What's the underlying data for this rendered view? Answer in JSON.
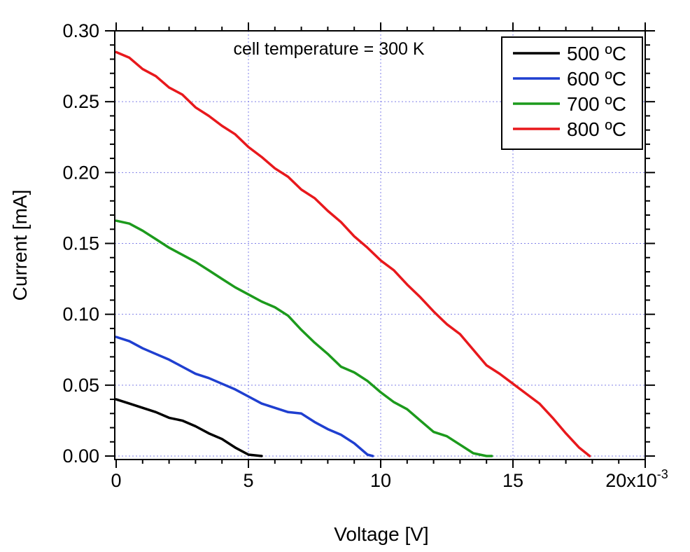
{
  "chart_data": {
    "type": "line",
    "xlabel": "Voltage [V]",
    "ylabel": "Current [mA]",
    "annotation": "cell temperature = 300 K",
    "xlim": [
      0,
      0.02
    ],
    "ylim": [
      0,
      0.3
    ],
    "grid": true,
    "legend_position": "top-right",
    "x_ticks": [
      {
        "value": 0,
        "label": "0"
      },
      {
        "value": 0.005,
        "label": "5"
      },
      {
        "value": 0.01,
        "label": "10"
      },
      {
        "value": 0.015,
        "label": "15"
      }
    ],
    "x_last_tick": {
      "value": 0.02,
      "label": "20x10",
      "exponent": "-3"
    },
    "y_ticks": [
      {
        "value": 0.0,
        "label": "0.00"
      },
      {
        "value": 0.05,
        "label": "0.05"
      },
      {
        "value": 0.1,
        "label": "0.10"
      },
      {
        "value": 0.15,
        "label": "0.15"
      },
      {
        "value": 0.2,
        "label": "0.20"
      },
      {
        "value": 0.25,
        "label": "0.25"
      },
      {
        "value": 0.3,
        "label": "0.30"
      }
    ],
    "series": [
      {
        "name": "500 ºC",
        "color": "#000000",
        "points": [
          [
            0.0,
            0.04
          ],
          [
            0.0005,
            0.037
          ],
          [
            0.001,
            0.034
          ],
          [
            0.0015,
            0.031
          ],
          [
            0.002,
            0.027
          ],
          [
            0.0025,
            0.025
          ],
          [
            0.003,
            0.021
          ],
          [
            0.0035,
            0.016
          ],
          [
            0.004,
            0.012
          ],
          [
            0.0045,
            0.006
          ],
          [
            0.005,
            0.001
          ],
          [
            0.0055,
            0.0
          ]
        ]
      },
      {
        "name": "600 ºC",
        "color": "#1f3fd0",
        "points": [
          [
            0.0,
            0.084
          ],
          [
            0.0005,
            0.081
          ],
          [
            0.001,
            0.076
          ],
          [
            0.0015,
            0.072
          ],
          [
            0.002,
            0.068
          ],
          [
            0.0025,
            0.063
          ],
          [
            0.003,
            0.058
          ],
          [
            0.0035,
            0.055
          ],
          [
            0.004,
            0.051
          ],
          [
            0.0045,
            0.047
          ],
          [
            0.005,
            0.042
          ],
          [
            0.0055,
            0.037
          ],
          [
            0.006,
            0.034
          ],
          [
            0.0065,
            0.031
          ],
          [
            0.007,
            0.03
          ],
          [
            0.0075,
            0.024
          ],
          [
            0.008,
            0.019
          ],
          [
            0.0085,
            0.015
          ],
          [
            0.009,
            0.009
          ],
          [
            0.0095,
            0.001
          ],
          [
            0.0097,
            0.0
          ]
        ]
      },
      {
        "name": "700 ºC",
        "color": "#1c9a1c",
        "points": [
          [
            0.0,
            0.166
          ],
          [
            0.0005,
            0.164
          ],
          [
            0.001,
            0.159
          ],
          [
            0.0015,
            0.153
          ],
          [
            0.002,
            0.147
          ],
          [
            0.0025,
            0.142
          ],
          [
            0.003,
            0.137
          ],
          [
            0.0035,
            0.131
          ],
          [
            0.004,
            0.125
          ],
          [
            0.0045,
            0.119
          ],
          [
            0.005,
            0.114
          ],
          [
            0.0055,
            0.109
          ],
          [
            0.006,
            0.105
          ],
          [
            0.0065,
            0.099
          ],
          [
            0.007,
            0.089
          ],
          [
            0.0075,
            0.08
          ],
          [
            0.008,
            0.072
          ],
          [
            0.0085,
            0.063
          ],
          [
            0.009,
            0.059
          ],
          [
            0.0095,
            0.053
          ],
          [
            0.01,
            0.045
          ],
          [
            0.0105,
            0.038
          ],
          [
            0.011,
            0.033
          ],
          [
            0.0115,
            0.025
          ],
          [
            0.012,
            0.017
          ],
          [
            0.0125,
            0.014
          ],
          [
            0.013,
            0.008
          ],
          [
            0.0135,
            0.002
          ],
          [
            0.014,
            0.0
          ],
          [
            0.0142,
            0.0
          ]
        ]
      },
      {
        "name": "800 ºC",
        "color": "#e8181c",
        "points": [
          [
            0.0,
            0.285
          ],
          [
            0.0005,
            0.281
          ],
          [
            0.001,
            0.273
          ],
          [
            0.0015,
            0.268
          ],
          [
            0.002,
            0.26
          ],
          [
            0.0025,
            0.255
          ],
          [
            0.003,
            0.246
          ],
          [
            0.0035,
            0.24
          ],
          [
            0.004,
            0.233
          ],
          [
            0.0045,
            0.227
          ],
          [
            0.005,
            0.218
          ],
          [
            0.0055,
            0.211
          ],
          [
            0.006,
            0.203
          ],
          [
            0.0065,
            0.197
          ],
          [
            0.007,
            0.188
          ],
          [
            0.0075,
            0.182
          ],
          [
            0.008,
            0.173
          ],
          [
            0.0085,
            0.165
          ],
          [
            0.009,
            0.155
          ],
          [
            0.0095,
            0.147
          ],
          [
            0.01,
            0.138
          ],
          [
            0.0105,
            0.131
          ],
          [
            0.011,
            0.121
          ],
          [
            0.0115,
            0.112
          ],
          [
            0.012,
            0.102
          ],
          [
            0.0125,
            0.093
          ],
          [
            0.013,
            0.086
          ],
          [
            0.0135,
            0.075
          ],
          [
            0.014,
            0.064
          ],
          [
            0.0145,
            0.058
          ],
          [
            0.015,
            0.051
          ],
          [
            0.0155,
            0.044
          ],
          [
            0.016,
            0.037
          ],
          [
            0.0165,
            0.027
          ],
          [
            0.017,
            0.016
          ],
          [
            0.0175,
            0.006
          ],
          [
            0.0179,
            0.0
          ]
        ]
      }
    ]
  }
}
